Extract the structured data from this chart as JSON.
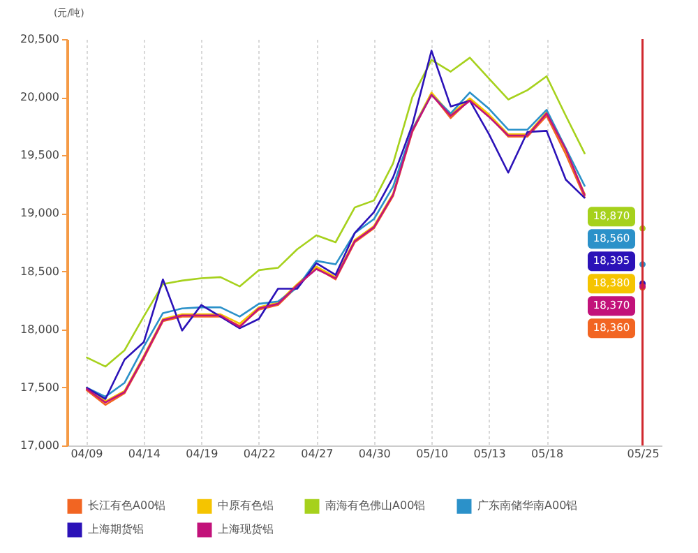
{
  "chart_data": {
    "type": "line",
    "ylabel": "(元/吨)",
    "categories": [
      "04/09",
      null,
      null,
      "04/14",
      null,
      null,
      "04/19",
      null,
      null,
      "04/22",
      null,
      null,
      "04/27",
      null,
      null,
      "04/30",
      null,
      null,
      "05/10",
      null,
      null,
      "05/13",
      null,
      null,
      "05/18",
      null,
      null,
      null,
      null,
      "05/25"
    ],
    "ylim": [
      17000,
      20500
    ],
    "yticks": [
      {
        "value": 17000,
        "label": "17,000"
      },
      {
        "value": 17500,
        "label": "17,500"
      },
      {
        "value": 18000,
        "label": "18,000"
      },
      {
        "value": 18500,
        "label": "18,500"
      },
      {
        "value": 19000,
        "label": "19,000"
      },
      {
        "value": 19500,
        "label": "19,500"
      },
      {
        "value": 20000,
        "label": "20,000"
      },
      {
        "value": 20500,
        "label": "20,500"
      }
    ],
    "grid": "x",
    "legend": "bottom",
    "ref_lines": [
      {
        "axis": "x",
        "value": "05/25",
        "color": "#d0282e"
      }
    ],
    "series": [
      {
        "name": "长江有色A00铝",
        "color": "#f26522",
        "values": [
          17480,
          17350,
          17450,
          17750,
          18070,
          18110,
          18110,
          18110,
          18030,
          18170,
          18210,
          18370,
          18530,
          18430,
          18750,
          18870,
          19150,
          19700,
          20030,
          19820,
          19980,
          19840,
          19660,
          19660,
          19840,
          19510,
          19130,
          null,
          null,
          18360
        ],
        "value_labels": [
          null,
          null,
          null,
          null,
          null,
          null,
          null,
          null,
          null,
          null,
          null,
          null,
          null,
          null,
          null,
          null,
          null,
          null,
          null,
          null,
          null,
          null,
          null,
          null,
          null,
          null,
          null,
          null,
          null,
          "18,360"
        ]
      },
      {
        "name": "中原有色铝",
        "color": "#f5c400",
        "values": [
          17500,
          17380,
          17470,
          17770,
          18090,
          18130,
          18130,
          18130,
          18050,
          18190,
          18230,
          18390,
          18540,
          18450,
          18770,
          18890,
          19170,
          19720,
          20040,
          19850,
          19990,
          19850,
          19680,
          19680,
          19870,
          19540,
          19160,
          null,
          null,
          18380
        ],
        "value_labels": [
          null,
          null,
          null,
          null,
          null,
          null,
          null,
          null,
          null,
          null,
          null,
          null,
          null,
          null,
          null,
          null,
          null,
          null,
          null,
          null,
          null,
          null,
          null,
          null,
          null,
          null,
          null,
          null,
          null,
          "18,380"
        ]
      },
      {
        "name": "南海有色佛山A00铝",
        "color": "#a6d11c",
        "values": [
          17760,
          17680,
          17820,
          18110,
          18390,
          18420,
          18440,
          18450,
          18370,
          18510,
          18530,
          18690,
          18810,
          18750,
          19050,
          19110,
          19430,
          20000,
          20320,
          20220,
          20340,
          20160,
          19980,
          20060,
          20180,
          19840,
          19510,
          null,
          null,
          18870
        ],
        "value_labels": [
          null,
          null,
          null,
          null,
          null,
          null,
          null,
          null,
          null,
          null,
          null,
          null,
          null,
          null,
          null,
          null,
          null,
          null,
          null,
          null,
          null,
          null,
          null,
          null,
          null,
          null,
          null,
          null,
          null,
          "18,870"
        ]
      },
      {
        "name": "广东南储华南A00铝",
        "color": "#2b91c9",
        "values": [
          17500,
          17420,
          17540,
          17850,
          18140,
          18180,
          18190,
          18190,
          18110,
          18220,
          18240,
          18360,
          18590,
          18560,
          18830,
          18950,
          19230,
          19720,
          20020,
          19860,
          20040,
          19900,
          19720,
          19720,
          19890,
          19560,
          19230,
          null,
          null,
          18560
        ],
        "value_labels": [
          null,
          null,
          null,
          null,
          null,
          null,
          null,
          null,
          null,
          null,
          null,
          null,
          null,
          null,
          null,
          null,
          null,
          null,
          null,
          null,
          null,
          null,
          null,
          null,
          null,
          null,
          null,
          null,
          null,
          "18,560"
        ]
      },
      {
        "name": "上海期货铝",
        "color": "#2b12b8",
        "values": [
          17500,
          17400,
          17740,
          17890,
          18430,
          17990,
          18210,
          18110,
          18010,
          18090,
          18350,
          18350,
          18570,
          18470,
          18830,
          19010,
          19310,
          19760,
          20400,
          19920,
          19970,
          19680,
          19350,
          19700,
          19710,
          19290,
          19130,
          null,
          null,
          18395
        ],
        "value_labels": [
          null,
          null,
          null,
          null,
          null,
          null,
          null,
          null,
          null,
          null,
          null,
          null,
          null,
          null,
          null,
          null,
          null,
          null,
          null,
          null,
          null,
          null,
          null,
          null,
          null,
          null,
          null,
          null,
          null,
          "18,395"
        ]
      },
      {
        "name": "上海现货铝",
        "color": "#c2127a",
        "values": [
          17490,
          17370,
          17460,
          17760,
          18080,
          18120,
          18120,
          18120,
          18020,
          18180,
          18220,
          18380,
          18520,
          18440,
          18760,
          18880,
          19160,
          19710,
          20020,
          19840,
          19970,
          19830,
          19670,
          19670,
          19860,
          19550,
          19150,
          null,
          null,
          18370
        ],
        "value_labels": [
          null,
          null,
          null,
          null,
          null,
          null,
          null,
          null,
          null,
          null,
          null,
          null,
          null,
          null,
          null,
          null,
          null,
          null,
          null,
          null,
          null,
          null,
          null,
          null,
          null,
          null,
          null,
          null,
          null,
          "18,370"
        ]
      }
    ]
  }
}
